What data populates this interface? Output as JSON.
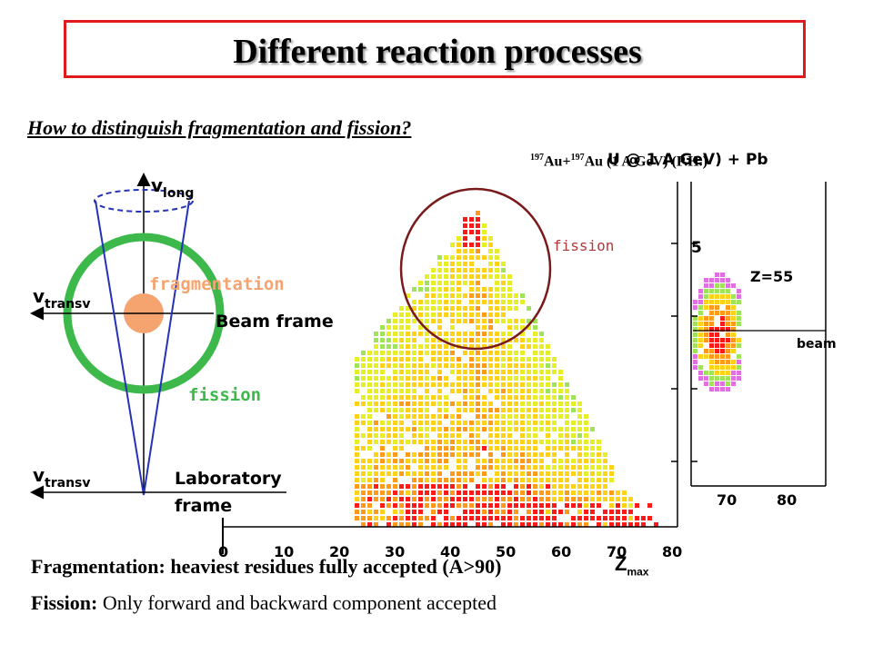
{
  "title": "Different reaction processes",
  "question": "How to distinguish fragmentation and fission?",
  "reaction": {
    "a1": "197",
    "p1": "Au+",
    "a2": "197",
    "p2": "Au (1 A GeV) (P.H.)",
    "overlay": "U @ 1 A GeV) + Pb"
  },
  "schematic": {
    "v_long": "v",
    "v_long_sub": "long",
    "v_transv": "v",
    "v_transv_sub": "transv",
    "fragmentation": "fragmentation",
    "beam_frame": "Beam frame",
    "fission": "fission",
    "laboratory": "Laboratory",
    "frame": "frame",
    "colors": {
      "ring": "#3cb94a",
      "cone": "#2433b8",
      "blob": "#f5a36f",
      "orange_text": "#f5a36f",
      "green_text": "#3cb94a"
    }
  },
  "heatmap": {
    "fission_label": "fission",
    "x_ticks": [
      "0",
      "10",
      "20",
      "30",
      "40",
      "50",
      "60",
      "70",
      "80"
    ],
    "zero_label": "0",
    "inset_x_ticks": [
      "70",
      "80"
    ],
    "inset_z_label": "Z=55",
    "inset_partial": "5",
    "beam_label": "beam",
    "colors": {
      "circle": "#7a1a1a",
      "fission_text": "#b03a3a"
    }
  },
  "bottom": {
    "frag_text": "Fragmentation: heaviest residues fully accepted (A>90)",
    "zmax": "Z",
    "zmax_sub": "max",
    "fission_bold": "Fission:",
    "fission_rest": " Only forward and backward component accepted"
  }
}
